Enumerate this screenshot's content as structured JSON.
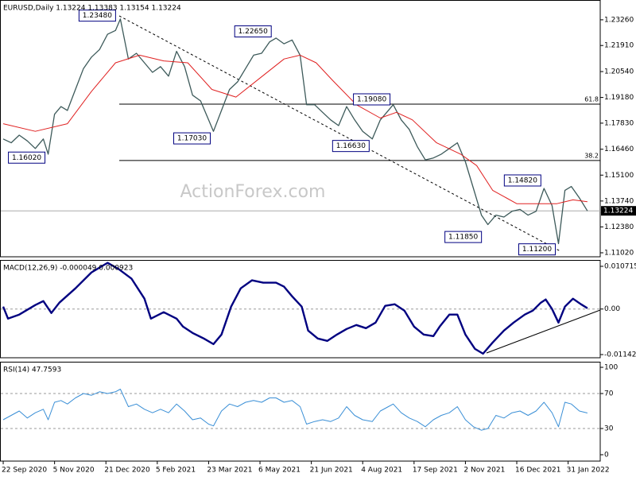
{
  "chart_data": [
    {
      "type": "line",
      "title": "EURUSD,Daily  1.13224 1.13383 1.13154 1.13224",
      "watermark": "ActionForex.com",
      "xlim": [
        -2,
        372
      ],
      "ylim": [
        1.1081,
        1.243
      ],
      "yticks": [
        {
          "value": 1.2326,
          "label": "1.23260"
        },
        {
          "value": 1.2191,
          "label": "1.21910"
        },
        {
          "value": 1.2054,
          "label": "1.20540"
        },
        {
          "value": 1.1918,
          "label": "1.19180"
        },
        {
          "value": 1.1783,
          "label": "1.17830"
        },
        {
          "value": 1.1646,
          "label": "1.16460"
        },
        {
          "value": 1.151,
          "label": "1.15100"
        },
        {
          "value": 1.1374,
          "label": "1.13740"
        },
        {
          "value": 1.1238,
          "label": "1.12380"
        },
        {
          "value": 1.1102,
          "label": "1.11020"
        }
      ],
      "series": [
        {
          "name": "EURUSD",
          "color": "#3d5a5a",
          "width": 1.3,
          "x": [
            0,
            5,
            10,
            15,
            20,
            25,
            28,
            32,
            36,
            40,
            45,
            50,
            55,
            60,
            65,
            70,
            73,
            78,
            83,
            88,
            93,
            98,
            103,
            108,
            113,
            118,
            123,
            128,
            131,
            136,
            141,
            146,
            151,
            156,
            161,
            166,
            170,
            175,
            180,
            185,
            189,
            194,
            199,
            204,
            209,
            214,
            219,
            224,
            230,
            235,
            240,
            243,
            248,
            253,
            258,
            263,
            268,
            273,
            278,
            283,
            288,
            293,
            298,
            302,
            307,
            312,
            317,
            322,
            327,
            332,
            337,
            342,
            346,
            350,
            354,
            359,
            364
          ],
          "values": [
            1.17,
            1.168,
            1.172,
            1.169,
            1.165,
            1.17,
            1.162,
            1.183,
            1.187,
            1.185,
            1.196,
            1.207,
            1.213,
            1.217,
            1.225,
            1.227,
            1.233,
            1.212,
            1.215,
            1.21,
            1.205,
            1.208,
            1.203,
            1.216,
            1.208,
            1.193,
            1.19,
            1.18,
            1.174,
            1.185,
            1.196,
            1.2,
            1.207,
            1.214,
            1.215,
            1.221,
            1.223,
            1.22,
            1.222,
            1.214,
            1.188,
            1.188,
            1.184,
            1.18,
            1.177,
            1.187,
            1.18,
            1.174,
            1.17,
            1.18,
            1.185,
            1.188,
            1.18,
            1.175,
            1.166,
            1.159,
            1.16,
            1.162,
            1.165,
            1.168,
            1.158,
            1.144,
            1.13,
            1.125,
            1.13,
            1.129,
            1.132,
            1.133,
            1.13,
            1.132,
            1.144,
            1.135,
            1.115,
            1.143,
            1.145,
            1.139,
            1.1322
          ]
        },
        {
          "name": "MA",
          "color": "#e02020",
          "width": 1,
          "x": [
            0,
            20,
            40,
            55,
            70,
            85,
            100,
            115,
            130,
            145,
            160,
            175,
            185,
            195,
            205,
            220,
            235,
            245,
            255,
            270,
            285,
            295,
            305,
            320,
            335,
            345,
            355,
            364
          ],
          "values": [
            1.178,
            1.174,
            1.178,
            1.195,
            1.21,
            1.214,
            1.211,
            1.21,
            1.196,
            1.192,
            1.202,
            1.212,
            1.214,
            1.21,
            1.201,
            1.188,
            1.181,
            1.184,
            1.18,
            1.168,
            1.162,
            1.156,
            1.143,
            1.136,
            1.136,
            1.136,
            1.138,
            1.137
          ]
        }
      ],
      "levels": [
        {
          "value": 1.1883,
          "label": "61.8"
        },
        {
          "value": 1.1587,
          "label": "38.2"
        }
      ],
      "last_price": 1.13224,
      "annotations": [
        {
          "label": "1.23480",
          "x": 72,
          "y": 1.2348
        },
        {
          "label": "1.22650",
          "x": 169,
          "y": 1.2265
        },
        {
          "label": "1.17030",
          "x": 131,
          "y": 1.1703
        },
        {
          "label": "1.16020",
          "x": 28,
          "y": 1.1602
        },
        {
          "label": "1.16630",
          "x": 230,
          "y": 1.1663
        },
        {
          "label": "1.19080",
          "x": 243,
          "y": 1.1908
        },
        {
          "label": "1.14820",
          "x": 337,
          "y": 1.1482
        },
        {
          "label": "1.11850",
          "x": 300,
          "y": 1.1185
        },
        {
          "label": "1.11200",
          "x": 346,
          "y": 1.112
        }
      ]
    },
    {
      "type": "line",
      "title": "MACD(12,26,9) -0.000049 0.000923",
      "xlim": [
        -2,
        372
      ],
      "ylim": [
        -0.01222,
        0.01231
      ],
      "yticks": [
        0.010715,
        {
          "value": 0,
          "label": "0.00"
        },
        -0.011424
      ],
      "levels": [
        {
          "value": 0
        }
      ],
      "series": [
        {
          "name": "MACD",
          "color": "#000080",
          "width": 2.4,
          "x": [
            0,
            3,
            10,
            20,
            25,
            30,
            35,
            45,
            55,
            65,
            72,
            80,
            88,
            92,
            100,
            108,
            112,
            118,
            125,
            131,
            136,
            142,
            148,
            155,
            162,
            170,
            175,
            180,
            186,
            190,
            196,
            202,
            208,
            214,
            220,
            226,
            232,
            238,
            244,
            250,
            256,
            262,
            268,
            272,
            278,
            283,
            288,
            294,
            299,
            305,
            312,
            318,
            325,
            330,
            335,
            338,
            342,
            346,
            350,
            355,
            360,
            364
          ],
          "values": [
            0.0006,
            -0.0024,
            -0.0014,
            0.001,
            0.002,
            -0.001,
            0.0016,
            0.0052,
            0.0092,
            0.0116,
            0.01,
            0.0076,
            0.0026,
            -0.0024,
            -0.0008,
            -0.0024,
            -0.0044,
            -0.006,
            -0.0074,
            -0.0088,
            -0.0064,
            0.0006,
            0.0052,
            0.0072,
            0.0066,
            0.0066,
            0.0056,
            0.0032,
            0.0006,
            -0.0054,
            -0.0074,
            -0.008,
            -0.0064,
            -0.005,
            -0.004,
            -0.0048,
            -0.0034,
            0.0008,
            0.0012,
            -0.0004,
            -0.0044,
            -0.0064,
            -0.0068,
            -0.0044,
            -0.0014,
            -0.0014,
            -0.0064,
            -0.01,
            -0.0112,
            -0.0084,
            -0.0054,
            -0.0034,
            -0.0014,
            -0.0004,
            0.0016,
            0.0024,
            0,
            -0.0034,
            0.0006,
            0.0026,
            0.0012,
            0.0002
          ]
        }
      ]
    },
    {
      "type": "line",
      "title": "RSI(14) 47.7593",
      "xlim": [
        -2,
        372
      ],
      "ylim": [
        -7.3,
        106.4
      ],
      "yticks": [
        100,
        70,
        30,
        0
      ],
      "levels": [
        {
          "value": 70
        },
        {
          "value": 30
        }
      ],
      "xticks": [
        {
          "value": 0,
          "label": "22 Sep 2020"
        },
        {
          "value": 32,
          "label": "5 Nov 2020"
        },
        {
          "value": 64,
          "label": "21 Dec 2020"
        },
        {
          "value": 96,
          "label": "5 Feb 2021"
        },
        {
          "value": 128,
          "label": "23 Mar 2021"
        },
        {
          "value": 160,
          "label": "6 May 2021"
        },
        {
          "value": 192,
          "label": "21 Jun 2021"
        },
        {
          "value": 224,
          "label": "4 Aug 2021"
        },
        {
          "value": 256,
          "label": "17 Sep 2021"
        },
        {
          "value": 288,
          "label": "2 Nov 2021"
        },
        {
          "value": 320,
          "label": "16 Dec 2021"
        },
        {
          "value": 352,
          "label": "31 Jan 2022"
        }
      ],
      "series": [
        {
          "name": "RSI",
          "color": "#3a8fd6",
          "width": 1,
          "x": [
            0,
            5,
            10,
            15,
            20,
            25,
            28,
            32,
            36,
            40,
            45,
            50,
            55,
            60,
            65,
            70,
            73,
            78,
            83,
            88,
            93,
            98,
            103,
            108,
            113,
            118,
            123,
            128,
            131,
            136,
            141,
            146,
            151,
            156,
            161,
            166,
            170,
            175,
            180,
            185,
            189,
            194,
            199,
            204,
            209,
            214,
            219,
            224,
            230,
            235,
            240,
            243,
            248,
            253,
            258,
            263,
            268,
            273,
            278,
            283,
            288,
            293,
            298,
            302,
            307,
            312,
            317,
            322,
            327,
            332,
            337,
            342,
            346,
            350,
            354,
            359,
            364
          ],
          "values": [
            40,
            45,
            50,
            42,
            48,
            52,
            40,
            60,
            62,
            58,
            65,
            70,
            68,
            72,
            70,
            72,
            75,
            55,
            58,
            52,
            48,
            52,
            48,
            58,
            50,
            40,
            42,
            35,
            33,
            50,
            58,
            55,
            60,
            62,
            60,
            65,
            65,
            60,
            62,
            55,
            35,
            38,
            40,
            38,
            42,
            55,
            45,
            40,
            38,
            50,
            55,
            58,
            48,
            42,
            38,
            32,
            40,
            45,
            48,
            55,
            40,
            32,
            28,
            30,
            45,
            42,
            48,
            50,
            45,
            50,
            60,
            48,
            32,
            60,
            58,
            50,
            47.76
          ]
        }
      ]
    }
  ]
}
